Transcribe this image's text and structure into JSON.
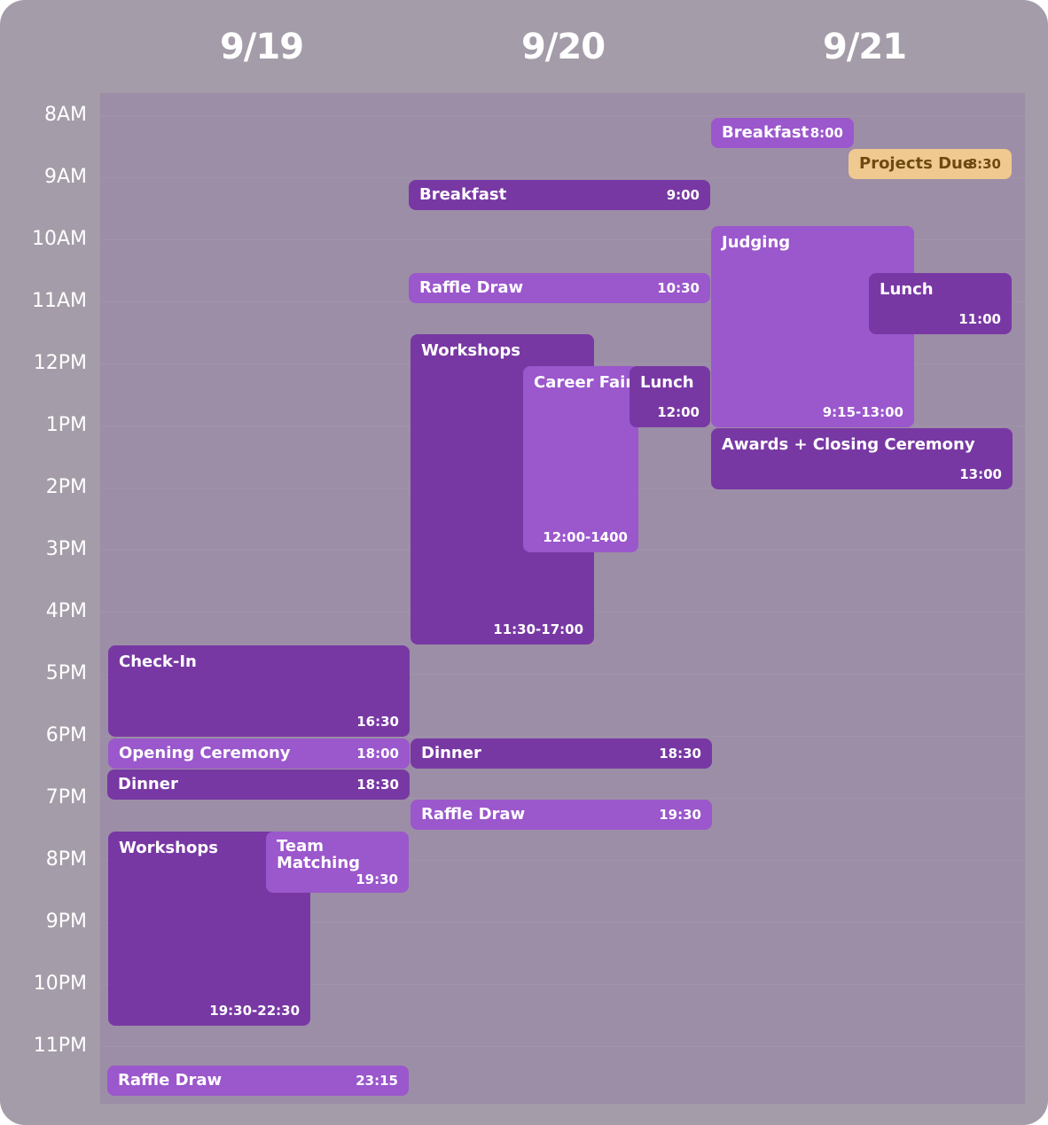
{
  "days": [
    "9/19",
    "9/20",
    "9/21"
  ],
  "hours": [
    "8AM",
    "9AM",
    "10AM",
    "11AM",
    "12PM",
    "1PM",
    "2PM",
    "3PM",
    "4PM",
    "5PM",
    "6PM",
    "7PM",
    "8PM",
    "9PM",
    "10PM",
    "11PM"
  ],
  "events": {
    "d1_checkin": {
      "name": "Check-In",
      "time": "16:30"
    },
    "d1_opening": {
      "name": "Opening Ceremony",
      "time": "18:00"
    },
    "d1_dinner": {
      "name": "Dinner",
      "time": "18:30"
    },
    "d1_workshops": {
      "name": "Workshops",
      "time": "19:30-22:30"
    },
    "d1_team": {
      "name": "Team Matching",
      "time": "19:30"
    },
    "d1_raffle": {
      "name": "Raffle Draw",
      "time": "23:15"
    },
    "d2_breakfast": {
      "name": "Breakfast",
      "time": "9:00"
    },
    "d2_raffle1": {
      "name": "Raffle Draw",
      "time": "10:30"
    },
    "d2_workshops": {
      "name": "Workshops",
      "time": "11:30-17:00"
    },
    "d2_career": {
      "name": "Career Fair",
      "time": "12:00-1400"
    },
    "d2_lunch": {
      "name": "Lunch",
      "time": "12:00"
    },
    "d2_dinner": {
      "name": "Dinner",
      "time": "18:30"
    },
    "d2_raffle2": {
      "name": "Raffle Draw",
      "time": "19:30"
    },
    "d3_breakfast": {
      "name": "Breakfast",
      "time": "8:00"
    },
    "d3_projects": {
      "name": "Projects Due",
      "time": "8:30"
    },
    "d3_judging": {
      "name": "Judging",
      "time": "9:15-13:00"
    },
    "d3_lunch": {
      "name": "Lunch",
      "time": "11:00"
    },
    "d3_awards": {
      "name": "Awards + Closing Ceremony",
      "time": "13:00"
    }
  },
  "colors": {
    "frame": "#a49ca8",
    "grid": "#9c8ea6",
    "event_dark": "#7838a4",
    "event_light": "#9b57cc",
    "event_highlight": "#f0c990"
  }
}
